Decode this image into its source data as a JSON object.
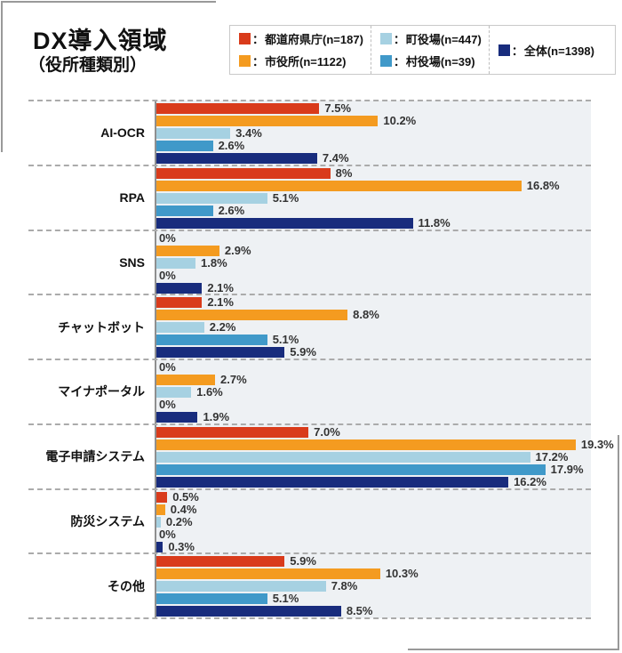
{
  "header": {
    "title": "DX導入領域",
    "subtitle": "（役所種類別）"
  },
  "legend": {
    "separator": "：",
    "columns": [
      [
        {
          "name": "prefecture",
          "label": "都道府県庁(n=187)",
          "color": "#d93b1b"
        },
        {
          "name": "city-hall",
          "label": "市役所(n=1122)",
          "color": "#f49b20"
        }
      ],
      [
        {
          "name": "town-hall",
          "label": "町役場(n=447)",
          "color": "#a6d1e2"
        },
        {
          "name": "village-hall",
          "label": "村役場(n=39)",
          "color": "#4099c9"
        }
      ],
      [
        {
          "name": "overall",
          "label": "全体(n=1398)",
          "color": "#182c7d"
        }
      ]
    ]
  },
  "chart_data": {
    "type": "bar",
    "orientation": "horizontal",
    "title": "DX導入領域（役所種類別）",
    "xlabel": "",
    "ylabel": "",
    "xlim": [
      0,
      20
    ],
    "grid": "dashed-row-separators",
    "legend_position": "top-right",
    "categories": [
      "AI-OCR",
      "RPA",
      "SNS",
      "チャットボット",
      "マイナポータル",
      "電子申請システム",
      "防災システム",
      "その他"
    ],
    "series": [
      {
        "name": "都道府県庁",
        "n": 187,
        "color": "#d93b1b",
        "values": [
          7.5,
          8,
          0,
          2.1,
          0,
          7.0,
          0.5,
          5.9
        ]
      },
      {
        "name": "市役所",
        "n": 1122,
        "color": "#f49b20",
        "values": [
          10.2,
          16.8,
          2.9,
          8.8,
          2.7,
          19.3,
          0.4,
          10.3
        ]
      },
      {
        "name": "町役場",
        "n": 447,
        "color": "#a6d1e2",
        "values": [
          3.4,
          5.1,
          1.8,
          2.2,
          1.6,
          17.2,
          0.2,
          7.8
        ]
      },
      {
        "name": "村役場",
        "n": 39,
        "color": "#4099c9",
        "values": [
          2.6,
          2.6,
          0,
          5.1,
          0,
          17.9,
          0,
          5.1
        ]
      },
      {
        "name": "全体",
        "n": 1398,
        "color": "#182c7d",
        "values": [
          7.4,
          11.8,
          2.1,
          5.9,
          1.9,
          16.2,
          0.3,
          8.5
        ]
      }
    ],
    "value_labels": [
      [
        "7.5%",
        "10.2%",
        "3.4%",
        "2.6%",
        "7.4%"
      ],
      [
        "8%",
        "16.8%",
        "5.1%",
        "2.6%",
        "11.8%"
      ],
      [
        "0%",
        "2.9%",
        "1.8%",
        "0%",
        "2.1%"
      ],
      [
        "2.1%",
        "8.8%",
        "2.2%",
        "5.1%",
        "5.9%"
      ],
      [
        "0%",
        "2.7%",
        "1.6%",
        "0%",
        "1.9%"
      ],
      [
        "7.0%",
        "19.3%",
        "17.2%",
        "17.9%",
        "16.2%"
      ],
      [
        "0.5%",
        "0.4%",
        "0.2%",
        "0%",
        "0.3%"
      ],
      [
        "5.9%",
        "10.3%",
        "7.8%",
        "5.1%",
        "8.5%"
      ]
    ]
  },
  "colors": {
    "plot_background": "#eef1f4",
    "axis_line": "#8f8f8f",
    "grid_dashed": "#ababab",
    "frame_bracket": "#999999",
    "legend_border": "#c9c9c9",
    "text": "#111111",
    "value_text": "#333333"
  }
}
